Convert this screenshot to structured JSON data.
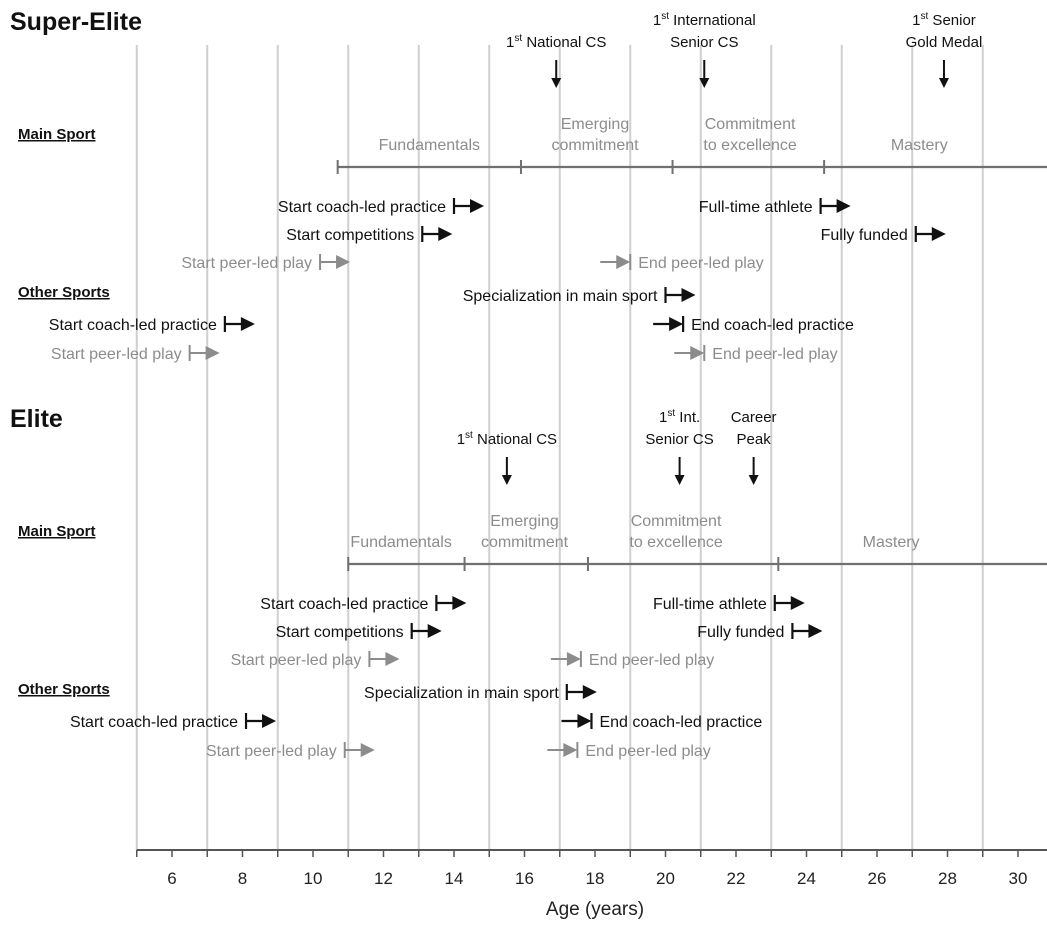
{
  "axis": {
    "label": "Age (years)",
    "ticks": [
      6,
      8,
      10,
      12,
      14,
      16,
      18,
      20,
      22,
      24,
      26,
      28,
      30
    ]
  },
  "colors": {
    "gridline": "#cfcfcf",
    "axis": "#555555",
    "phase_line": "#707070",
    "phase_label": "#8c8c8c",
    "primary_event": "#111111",
    "peer_event": "#8c8c8c"
  },
  "groups": [
    {
      "id": "super-elite",
      "title": "Super-Elite",
      "main_heading": "Main Sport",
      "other_heading": "Other Sports",
      "milestones": [
        {
          "lines": [
            "1st National CS"
          ],
          "age": 16.9
        },
        {
          "lines": [
            "1st International",
            "Senior CS"
          ],
          "age": 21.1
        },
        {
          "lines": [
            "1st Senior",
            "Gold Medal"
          ],
          "age": 27.9
        }
      ],
      "phase_boundaries": [
        10.7,
        15.9,
        20.2,
        24.5
      ],
      "phase_labels": [
        {
          "lines": [
            "Fundamentals"
          ],
          "age": 13.3
        },
        {
          "lines": [
            "Emerging",
            "commitment"
          ],
          "age": 18.0
        },
        {
          "lines": [
            "Commitment",
            "to excellence"
          ],
          "age": 22.4
        },
        {
          "lines": [
            "Mastery"
          ],
          "age": 27.2
        }
      ],
      "main_events": [
        {
          "label": "Start coach-led practice",
          "age": 14.0,
          "kind": "start",
          "tone": "primary"
        },
        {
          "label": "Start competitions",
          "age": 13.1,
          "kind": "start",
          "tone": "primary"
        },
        {
          "label": "Start peer-led play",
          "age": 10.2,
          "kind": "start",
          "tone": "peer"
        },
        {
          "label": "Full-time athlete",
          "age": 24.4,
          "kind": "start",
          "tone": "primary"
        },
        {
          "label": "Fully funded",
          "age": 27.1,
          "kind": "start",
          "tone": "primary"
        },
        {
          "label": "End peer-led play",
          "age": 19.0,
          "kind": "end",
          "tone": "peer"
        }
      ],
      "other_events": [
        {
          "label": "Specialization in main sport",
          "age": 20.0,
          "kind": "start",
          "tone": "primary"
        },
        {
          "label": "Start coach-led practice",
          "age": 7.5,
          "kind": "start",
          "tone": "primary"
        },
        {
          "label": "End coach-led practice",
          "age": 20.5,
          "kind": "end",
          "tone": "primary"
        },
        {
          "label": "Start peer-led play",
          "age": 6.5,
          "kind": "start",
          "tone": "peer"
        },
        {
          "label": "End peer-led play",
          "age": 21.1,
          "kind": "end",
          "tone": "peer"
        }
      ]
    },
    {
      "id": "elite",
      "title": "Elite",
      "main_heading": "Main Sport",
      "other_heading": "Other Sports",
      "milestones": [
        {
          "lines": [
            "1st National CS"
          ],
          "age": 15.5
        },
        {
          "lines": [
            "1st Int.",
            "Senior CS"
          ],
          "age": 20.4
        },
        {
          "lines": [
            "Career",
            "Peak"
          ],
          "age": 22.5
        }
      ],
      "phase_boundaries": [
        11.0,
        14.3,
        17.8,
        23.2
      ],
      "phase_labels": [
        {
          "lines": [
            "Fundamentals"
          ],
          "age": 12.5
        },
        {
          "lines": [
            "Emerging",
            "commitment"
          ],
          "age": 16.0
        },
        {
          "lines": [
            "Commitment",
            "to excellence"
          ],
          "age": 20.3
        },
        {
          "lines": [
            "Mastery"
          ],
          "age": 26.4
        }
      ],
      "main_events": [
        {
          "label": "Start coach-led practice",
          "age": 13.5,
          "kind": "start",
          "tone": "primary"
        },
        {
          "label": "Start competitions",
          "age": 12.8,
          "kind": "start",
          "tone": "primary"
        },
        {
          "label": "Start peer-led play",
          "age": 11.6,
          "kind": "start",
          "tone": "peer"
        },
        {
          "label": "Full-time athlete",
          "age": 23.1,
          "kind": "start",
          "tone": "primary"
        },
        {
          "label": "Fully funded",
          "age": 23.6,
          "kind": "start",
          "tone": "primary"
        },
        {
          "label": "End peer-led play",
          "age": 17.6,
          "kind": "end",
          "tone": "peer"
        }
      ],
      "other_events": [
        {
          "label": "Specialization in main sport",
          "age": 17.2,
          "kind": "start",
          "tone": "primary"
        },
        {
          "label": "Start coach-led practice",
          "age": 8.1,
          "kind": "start",
          "tone": "primary"
        },
        {
          "label": "End coach-led practice",
          "age": 17.9,
          "kind": "end",
          "tone": "primary"
        },
        {
          "label": "Start peer-led play",
          "age": 10.9,
          "kind": "start",
          "tone": "peer"
        },
        {
          "label": "End peer-led play",
          "age": 17.5,
          "kind": "end",
          "tone": "peer"
        }
      ]
    }
  ]
}
